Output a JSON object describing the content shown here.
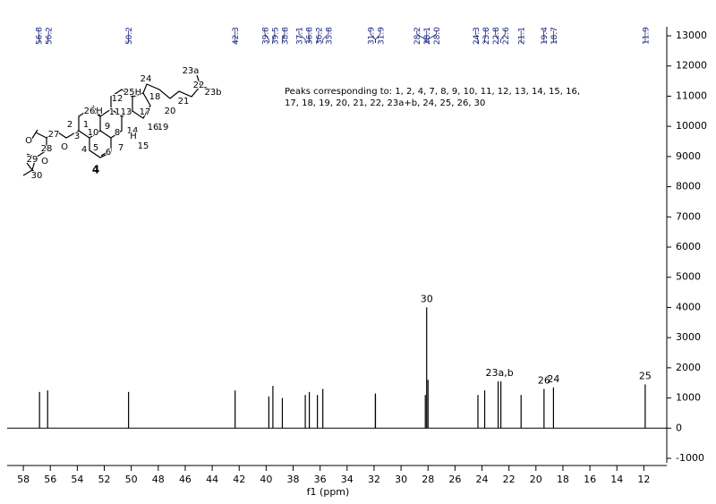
{
  "chart_data": {
    "type": "stem",
    "x": [
      56.8,
      56.2,
      50.2,
      42.3,
      39.8,
      39.5,
      38.8,
      37.1,
      36.8,
      36.2,
      35.8,
      31.9,
      31.9,
      28.2,
      28.1,
      {
        "value": 28,
        "label": "28.0"
      },
      24.3,
      23.8,
      22.8,
      22.6,
      21.1,
      19.4,
      18.7,
      11.9
    ],
    "values": [
      1200,
      1250,
      1200,
      1250,
      1050,
      1400,
      1000,
      1100,
      1200,
      1100,
      1300,
      1150,
      1100,
      1100,
      4000,
      1600,
      1100,
      1250,
      1550,
      1550,
      1100,
      1300,
      1350,
      1450
    ],
    "color": "#000000",
    "xlim": [
      59.2,
      10.3
    ],
    "xticks": [
      58,
      56,
      54,
      52,
      50,
      48,
      46,
      44,
      42,
      40,
      38,
      36,
      34,
      32,
      30,
      28,
      26,
      24,
      22,
      20,
      18,
      16,
      14,
      12
    ],
    "ylim": [
      -1000,
      13000
    ],
    "yticks": [
      -1000,
      0,
      1000,
      2000,
      3000,
      4000,
      5000,
      6000,
      7000,
      8000,
      9000,
      10000,
      11000,
      12000,
      13000
    ],
    "xlabel": "f1 (ppm)",
    "peak_labels": [
      {
        "value": 28.1,
        "label": "30"
      },
      {
        "value": 22.7,
        "label": "23a,b"
      },
      {
        "value": 19.4,
        "label": "26"
      },
      {
        "value": 18.7,
        "label": "24"
      },
      {
        "value": 11.9,
        "label": "25"
      }
    ],
    "annotation": [
      "Peaks corresponding to: 1, 2, 4, 7, 8, 9, 10, 11, 12, 13, 14, 15, 16,",
      "17, 18, 19, 20, 21, 22, 23a+b, 24, 25, 26, 30"
    ]
  },
  "structure": {
    "compound": "4",
    "atoms": [
      "24",
      "25H",
      "18",
      "23a",
      "22",
      "23b",
      "20",
      "21",
      "19",
      "12",
      "26",
      "H",
      "11",
      "13",
      "17",
      "16",
      "2",
      "1",
      "9",
      "14",
      "10",
      "8",
      "H",
      "15",
      "3",
      "4",
      "5",
      "6",
      "7",
      "O",
      "27",
      "28",
      "O",
      "O",
      "29",
      "30"
    ]
  }
}
